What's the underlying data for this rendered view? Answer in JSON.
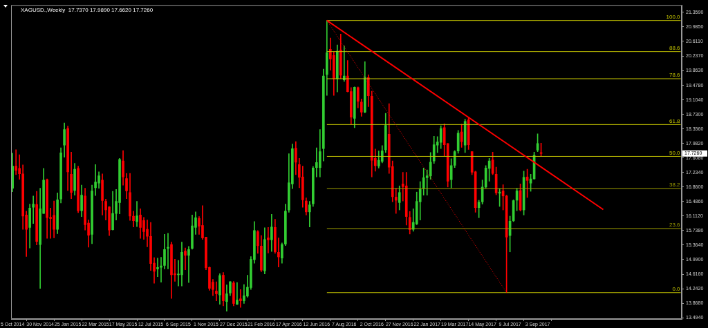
{
  "chart_data": {
    "type": "candlestick",
    "title": "XAGUSD.,Weekly  17.7370 17.9890 17.6620 17.7260",
    "x": [
      "2014-10-05",
      "2014-10-12",
      "2014-10-19",
      "2014-10-26",
      "2014-11-02",
      "2014-11-09",
      "2014-11-16",
      "2014-11-23",
      "2014-11-30",
      "2014-12-07",
      "2014-12-14",
      "2014-12-21",
      "2014-12-28",
      "2015-01-04",
      "2015-01-11",
      "2015-01-18",
      "2015-01-25",
      "2015-02-01",
      "2015-02-08",
      "2015-02-15",
      "2015-02-22",
      "2015-03-01",
      "2015-03-08",
      "2015-03-15",
      "2015-03-22",
      "2015-03-29",
      "2015-04-05",
      "2015-04-12",
      "2015-04-19",
      "2015-04-26",
      "2015-05-03",
      "2015-05-10",
      "2015-05-17",
      "2015-05-24",
      "2015-05-31",
      "2015-06-07",
      "2015-06-14",
      "2015-06-21",
      "2015-06-28",
      "2015-07-05",
      "2015-07-12",
      "2015-07-19",
      "2015-07-26",
      "2015-08-02",
      "2015-08-09",
      "2015-08-16",
      "2015-08-23",
      "2015-08-30",
      "2015-09-06",
      "2015-09-13",
      "2015-09-20",
      "2015-09-27",
      "2015-10-04",
      "2015-10-11",
      "2015-10-18",
      "2015-10-25",
      "2015-11-01",
      "2015-11-08",
      "2015-11-15",
      "2015-11-22",
      "2015-11-29",
      "2015-12-06",
      "2015-12-13",
      "2015-12-20",
      "2015-12-27",
      "2016-01-03",
      "2016-01-10",
      "2016-01-17",
      "2016-01-24",
      "2016-01-31",
      "2016-02-07",
      "2016-02-14",
      "2016-02-21",
      "2016-02-28",
      "2016-03-06",
      "2016-03-13",
      "2016-03-20",
      "2016-03-27",
      "2016-04-03",
      "2016-04-10",
      "2016-04-17",
      "2016-04-24",
      "2016-05-01",
      "2016-05-08",
      "2016-05-15",
      "2016-05-22",
      "2016-05-29",
      "2016-06-05",
      "2016-06-12",
      "2016-06-19",
      "2016-06-26",
      "2016-07-03",
      "2016-07-10",
      "2016-07-17",
      "2016-07-24",
      "2016-07-31",
      "2016-08-07",
      "2016-08-14",
      "2016-08-21",
      "2016-08-28",
      "2016-09-04",
      "2016-09-11",
      "2016-09-18",
      "2016-09-25",
      "2016-10-02",
      "2016-10-09",
      "2016-10-16",
      "2016-10-23",
      "2016-10-30",
      "2016-11-06",
      "2016-11-13",
      "2016-11-20",
      "2016-11-27",
      "2016-12-04",
      "2016-12-11",
      "2016-12-18",
      "2016-12-25",
      "2017-01-01",
      "2017-01-08",
      "2017-01-15",
      "2017-01-22",
      "2017-01-29",
      "2017-02-05",
      "2017-02-12",
      "2017-02-19",
      "2017-02-26",
      "2017-03-05",
      "2017-03-12",
      "2017-03-19",
      "2017-03-26",
      "2017-04-02",
      "2017-04-09",
      "2017-04-16",
      "2017-04-23",
      "2017-04-30",
      "2017-05-07",
      "2017-05-14",
      "2017-05-21",
      "2017-05-28",
      "2017-06-04",
      "2017-06-11",
      "2017-06-18",
      "2017-06-25",
      "2017-07-02",
      "2017-07-09",
      "2017-07-16",
      "2017-07-23",
      "2017-07-30",
      "2017-08-06",
      "2017-08-13",
      "2017-08-20",
      "2017-08-27",
      "2017-09-03",
      "2017-09-10"
    ],
    "ohlc": [
      [
        16.83,
        17.73,
        16.74,
        17.4
      ],
      [
        17.4,
        17.82,
        17.18,
        17.29
      ],
      [
        17.34,
        17.69,
        17.06,
        17.2
      ],
      [
        17.2,
        17.43,
        15.77,
        16.11
      ],
      [
        16.14,
        16.24,
        15.07,
        15.77
      ],
      [
        15.82,
        16.42,
        15.29,
        16.32
      ],
      [
        16.34,
        16.63,
        15.92,
        16.42
      ],
      [
        16.41,
        16.75,
        15.37,
        15.46
      ],
      [
        15.38,
        16.83,
        14.25,
        16.3
      ],
      [
        16.18,
        17.34,
        16.18,
        17.04
      ],
      [
        17.05,
        17.07,
        15.54,
        16.07
      ],
      [
        16.08,
        16.32,
        15.54,
        16.05
      ],
      [
        16.13,
        16.5,
        15.55,
        15.77
      ],
      [
        15.77,
        16.71,
        15.66,
        16.53
      ],
      [
        16.55,
        17.87,
        16.45,
        17.74
      ],
      [
        17.94,
        18.51,
        17.63,
        18.34
      ],
      [
        18.37,
        18.43,
        16.77,
        17.25
      ],
      [
        17.19,
        17.76,
        16.56,
        16.72
      ],
      [
        16.77,
        17.47,
        16.65,
        17.32
      ],
      [
        17.34,
        17.4,
        16.2,
        16.25
      ],
      [
        16.25,
        16.91,
        16.1,
        16.65
      ],
      [
        16.63,
        16.83,
        15.75,
        15.89
      ],
      [
        15.93,
        16.01,
        15.31,
        15.62
      ],
      [
        15.64,
        16.91,
        15.4,
        16.76
      ],
      [
        16.84,
        17.44,
        16.64,
        16.99
      ],
      [
        16.96,
        17.25,
        16.83,
        17.15
      ],
      [
        17.04,
        17.2,
        16.14,
        16.51
      ],
      [
        16.49,
        16.55,
        16.01,
        16.27
      ],
      [
        16.35,
        16.36,
        15.61,
        15.75
      ],
      [
        15.76,
        16.75,
        15.75,
        16.18
      ],
      [
        16.18,
        16.8,
        16.01,
        16.49
      ],
      [
        16.46,
        17.6,
        16.17,
        17.57
      ],
      [
        17.53,
        17.8,
        16.91,
        17.12
      ],
      [
        17.08,
        17.21,
        16.56,
        16.76
      ],
      [
        16.72,
        17.21,
        16.0,
        16.11
      ],
      [
        16.11,
        16.24,
        15.83,
        15.99
      ],
      [
        15.97,
        16.49,
        15.84,
        16.12
      ],
      [
        16.14,
        16.3,
        15.54,
        15.82
      ],
      [
        16.0,
        16.08,
        15.51,
        15.71
      ],
      [
        15.77,
        16.01,
        15.32,
        15.59
      ],
      [
        15.59,
        15.95,
        14.71,
        14.89
      ],
      [
        14.9,
        15.04,
        14.38,
        14.69
      ],
      [
        14.75,
        15.03,
        14.55,
        14.79
      ],
      [
        14.79,
        15.05,
        14.41,
        14.83
      ],
      [
        14.84,
        15.64,
        14.75,
        15.25
      ],
      [
        15.28,
        15.67,
        14.75,
        15.31
      ],
      [
        15.38,
        15.44,
        13.99,
        14.6
      ],
      [
        14.63,
        15.0,
        14.43,
        14.6
      ],
      [
        14.6,
        14.97,
        14.31,
        14.62
      ],
      [
        14.6,
        15.44,
        14.31,
        15.18
      ],
      [
        15.21,
        15.29,
        14.73,
        15.1
      ],
      [
        15.1,
        15.33,
        14.4,
        15.25
      ],
      [
        15.28,
        16.14,
        15.26,
        15.86
      ],
      [
        15.82,
        16.22,
        15.64,
        16.07
      ],
      [
        16.05,
        16.1,
        15.64,
        15.85
      ],
      [
        15.87,
        16.38,
        15.51,
        15.55
      ],
      [
        15.57,
        15.57,
        14.73,
        14.78
      ],
      [
        14.79,
        14.8,
        14.2,
        14.25
      ],
      [
        14.41,
        14.48,
        14.06,
        14.22
      ],
      [
        14.18,
        14.42,
        13.93,
        14.11
      ],
      [
        14.08,
        14.63,
        13.84,
        14.58
      ],
      [
        14.59,
        14.66,
        13.8,
        13.93
      ],
      [
        13.91,
        14.34,
        13.66,
        14.11
      ],
      [
        14.13,
        14.43,
        14.06,
        14.42
      ],
      [
        14.39,
        14.43,
        13.8,
        13.86
      ],
      [
        13.84,
        14.4,
        13.83,
        13.95
      ],
      [
        13.98,
        14.22,
        13.76,
        13.93
      ],
      [
        13.93,
        14.35,
        13.86,
        14.06
      ],
      [
        14.05,
        14.59,
        14.02,
        14.28
      ],
      [
        14.27,
        15.07,
        14.22,
        15.0
      ],
      [
        14.99,
        15.97,
        14.9,
        15.74
      ],
      [
        15.71,
        15.74,
        15.15,
        15.35
      ],
      [
        15.34,
        15.61,
        14.68,
        14.72
      ],
      [
        14.7,
        15.81,
        14.62,
        15.51
      ],
      [
        15.55,
        15.82,
        15.16,
        15.5
      ],
      [
        15.5,
        16.16,
        15.2,
        15.83
      ],
      [
        15.82,
        16.03,
        15.15,
        15.19
      ],
      [
        15.18,
        15.55,
        14.8,
        15.06
      ],
      [
        15.03,
        15.42,
        14.9,
        15.38
      ],
      [
        15.39,
        16.42,
        15.35,
        16.24
      ],
      [
        16.27,
        17.72,
        16.21,
        16.97
      ],
      [
        16.94,
        17.97,
        16.82,
        17.85
      ],
      [
        17.86,
        18.03,
        17.18,
        17.5
      ],
      [
        17.44,
        17.6,
        16.84,
        17.11
      ],
      [
        17.12,
        17.4,
        16.34,
        16.53
      ],
      [
        16.5,
        16.58,
        16.14,
        16.22
      ],
      [
        16.22,
        16.49,
        15.83,
        16.4
      ],
      [
        16.43,
        17.39,
        16.36,
        17.35
      ],
      [
        17.36,
        17.87,
        17.12,
        17.49
      ],
      [
        17.36,
        18.34,
        17.12,
        17.77
      ],
      [
        17.85,
        19.9,
        17.53,
        19.72
      ],
      [
        19.76,
        21.15,
        19.22,
        20.32
      ],
      [
        20.41,
        20.7,
        19.87,
        20.16
      ],
      [
        20.25,
        20.34,
        19.22,
        19.65
      ],
      [
        19.65,
        20.52,
        19.31,
        20.36
      ],
      [
        20.39,
        20.8,
        19.65,
        19.74
      ],
      [
        19.62,
        20.5,
        19.58,
        19.72
      ],
      [
        19.72,
        20.12,
        19.31,
        19.32
      ],
      [
        19.32,
        19.42,
        18.48,
        18.66
      ],
      [
        18.63,
        19.44,
        18.39,
        19.43
      ],
      [
        19.42,
        19.44,
        18.9,
        19.07
      ],
      [
        19.05,
        19.13,
        18.68,
        18.79
      ],
      [
        18.79,
        20.09,
        18.77,
        19.69
      ],
      [
        19.68,
        19.75,
        18.93,
        19.21
      ],
      [
        19.2,
        19.33,
        17.12,
        17.55
      ],
      [
        17.6,
        17.84,
        17.27,
        17.41
      ],
      [
        17.4,
        17.79,
        17.35,
        17.55
      ],
      [
        17.52,
        17.93,
        17.48,
        17.79
      ],
      [
        17.82,
        18.76,
        17.75,
        18.45
      ],
      [
        18.22,
        19.01,
        17.21,
        17.37
      ],
      [
        17.39,
        17.53,
        16.48,
        16.61
      ],
      [
        16.6,
        16.83,
        16.18,
        16.52
      ],
      [
        16.46,
        16.89,
        16.27,
        16.72
      ],
      [
        16.94,
        17.24,
        16.5,
        16.87
      ],
      [
        16.89,
        17.24,
        15.88,
        16.1
      ],
      [
        16.08,
        16.23,
        15.65,
        15.76
      ],
      [
        15.77,
        16.3,
        15.72,
        15.95
      ],
      [
        15.91,
        16.73,
        15.89,
        16.49
      ],
      [
        16.48,
        17.0,
        16.01,
        16.81
      ],
      [
        16.82,
        17.35,
        16.65,
        17.1
      ],
      [
        17.1,
        17.3,
        16.65,
        17.15
      ],
      [
        17.15,
        17.75,
        17.06,
        17.5
      ],
      [
        17.53,
        18.17,
        17.47,
        17.95
      ],
      [
        17.94,
        18.16,
        17.75,
        18.02
      ],
      [
        18.01,
        18.44,
        17.85,
        18.37
      ],
      [
        18.39,
        18.49,
        17.65,
        17.95
      ],
      [
        17.98,
        17.98,
        16.86,
        17.01
      ],
      [
        17.05,
        17.59,
        16.84,
        17.41
      ],
      [
        17.42,
        17.8,
        17.36,
        17.77
      ],
      [
        17.79,
        18.32,
        17.73,
        18.25
      ],
      [
        18.28,
        18.48,
        17.88,
        18.03
      ],
      [
        17.94,
        18.61,
        17.75,
        18.55
      ],
      [
        18.59,
        18.66,
        17.83,
        17.95
      ],
      [
        17.77,
        17.77,
        17.18,
        17.24
      ],
      [
        17.25,
        17.27,
        16.21,
        16.33
      ],
      [
        16.33,
        16.52,
        16.07,
        16.47
      ],
      [
        16.48,
        17.04,
        16.42,
        16.86
      ],
      [
        16.86,
        17.41,
        16.83,
        17.35
      ],
      [
        17.34,
        17.6,
        17.01,
        17.53
      ],
      [
        17.56,
        17.76,
        17.18,
        17.21
      ],
      [
        17.19,
        17.37,
        16.66,
        16.71
      ],
      [
        16.7,
        16.82,
        16.36,
        16.73
      ],
      [
        16.76,
        16.92,
        16.27,
        16.63
      ],
      [
        16.63,
        16.65,
        14.14,
        15.57
      ],
      [
        15.61,
        16.11,
        15.19,
        15.98
      ],
      [
        15.99,
        16.53,
        15.97,
        16.51
      ],
      [
        16.52,
        16.83,
        16.25,
        16.76
      ],
      [
        16.77,
        16.94,
        16.24,
        16.27
      ],
      [
        16.27,
        17.27,
        16.14,
        17.11
      ],
      [
        17.12,
        17.32,
        16.59,
        17.03
      ],
      [
        16.96,
        17.19,
        16.75,
        17.07
      ],
      [
        17.07,
        17.76,
        17.06,
        17.68
      ],
      [
        17.81,
        18.23,
        17.77,
        17.98
      ],
      [
        17.737,
        17.989,
        17.662,
        17.726
      ]
    ],
    "series": [
      {
        "type": "line",
        "color": "#ff0000",
        "x": [
          "2016-07-03",
          "2018-01-14"
        ],
        "values": [
          21.15,
          16.28
        ]
      },
      {
        "type": "line",
        "color": "#ff0000",
        "line_style": "dotted",
        "x": [
          "2016-07-03",
          "2017-07-02"
        ],
        "values": [
          21.15,
          14.14
        ]
      },
      {
        "type": "line",
        "name": "100.0",
        "color": "#c8c800",
        "x": [
          "2016-07-03",
          "2018-06-20"
        ],
        "values": [
          21.15,
          21.15
        ]
      },
      {
        "type": "line",
        "name": "88.6",
        "color": "#c8c800",
        "x": [
          "2016-07-03",
          "2018-06-20"
        ],
        "values": [
          20.35,
          20.35
        ]
      },
      {
        "type": "line",
        "name": "78.6",
        "color": "#c8c800",
        "x": [
          "2016-07-03",
          "2018-06-20"
        ],
        "values": [
          19.65,
          19.65
        ]
      },
      {
        "type": "line",
        "name": "61.8",
        "color": "#c8c800",
        "x": [
          "2016-07-03",
          "2018-06-20"
        ],
        "values": [
          18.47,
          18.47
        ]
      },
      {
        "type": "line",
        "name": "50.0",
        "color": "#c8c800",
        "x": [
          "2016-07-03",
          "2018-06-20"
        ],
        "values": [
          17.65,
          17.65
        ]
      },
      {
        "type": "line",
        "name": "38.2",
        "color": "#a0a000",
        "x": [
          "2016-07-03",
          "2018-06-20"
        ],
        "values": [
          16.82,
          16.82
        ]
      },
      {
        "type": "line",
        "name": "23.6",
        "color": "#a0a000",
        "x": [
          "2016-07-03",
          "2018-06-20"
        ],
        "values": [
          15.79,
          15.79
        ]
      },
      {
        "type": "line",
        "name": "0.0",
        "color": "#c8c800",
        "x": [
          "2016-07-03",
          "2018-06-20"
        ],
        "values": [
          14.14,
          14.14
        ]
      }
    ],
    "annotations": [
      "17.7260"
    ],
    "xlim": [
      "2014-10-02",
      "2018-06-22"
    ],
    "xticks": [
      {
        "value": "2014-10-05",
        "label": "5 Oct 2014"
      },
      {
        "value": "2014-11-30",
        "label": "30 Nov 2014"
      },
      {
        "value": "2015-01-25",
        "label": "25 Jan 2015"
      },
      {
        "value": "2015-03-22",
        "label": "22 Mar 2015"
      },
      {
        "value": "2015-05-17",
        "label": "17 May 2015"
      },
      {
        "value": "2015-07-12",
        "label": "12 Jul 2015"
      },
      {
        "value": "2015-09-06",
        "label": "6 Sep 2015"
      },
      {
        "value": "2015-11-01",
        "label": "1 Nov 2015"
      },
      {
        "value": "2015-12-27",
        "label": "27 Dec 2015"
      },
      {
        "value": "2016-02-21",
        "label": "21 Feb 2016"
      },
      {
        "value": "2016-04-17",
        "label": "17 Apr 2016"
      },
      {
        "value": "2016-06-12",
        "label": "12 Jun 2016"
      },
      {
        "value": "2016-08-07",
        "label": "7 Aug 2016"
      },
      {
        "value": "2016-10-02",
        "label": "2 Oct 2016"
      },
      {
        "value": "2016-11-27",
        "label": "27 Nov 2016"
      },
      {
        "value": "2017-01-22",
        "label": "22 Jan 2017"
      },
      {
        "value": "2017-03-19",
        "label": "19 Mar 2017"
      },
      {
        "value": "2017-05-14",
        "label": "14 May 2017"
      },
      {
        "value": "2017-07-09",
        "label": "9 Jul 2017"
      },
      {
        "value": "2017-09-03",
        "label": "3 Sep 2017"
      }
    ],
    "ylim": [
      13.46,
      21.55
    ],
    "yticks": [
      {
        "value": 21.359,
        "label": "21.3590"
      },
      {
        "value": 20.985,
        "label": "20.9850"
      },
      {
        "value": 20.611,
        "label": "20.6110"
      },
      {
        "value": 20.237,
        "label": "20.2370"
      },
      {
        "value": 19.863,
        "label": "19.8630"
      },
      {
        "value": 19.478,
        "label": "19.4780"
      },
      {
        "value": 19.104,
        "label": "19.1040"
      },
      {
        "value": 18.73,
        "label": "18.7300"
      },
      {
        "value": 18.356,
        "label": "18.3560"
      },
      {
        "value": 17.982,
        "label": "17.9820"
      },
      {
        "value": 17.608,
        "label": "17.6080"
      },
      {
        "value": 17.234,
        "label": "17.2340"
      },
      {
        "value": 16.86,
        "label": "16.8600"
      },
      {
        "value": 16.486,
        "label": "16.4860"
      },
      {
        "value": 16.112,
        "label": "16.1120"
      },
      {
        "value": 15.738,
        "label": "15.7380"
      },
      {
        "value": 15.364,
        "label": "15.3640"
      },
      {
        "value": 14.99,
        "label": "14.9900"
      },
      {
        "value": 14.616,
        "label": "14.6160"
      },
      {
        "value": 14.242,
        "label": "14.2420"
      },
      {
        "value": 13.868,
        "label": "13.8680"
      },
      {
        "value": 13.494,
        "label": "13.4940"
      }
    ]
  }
}
